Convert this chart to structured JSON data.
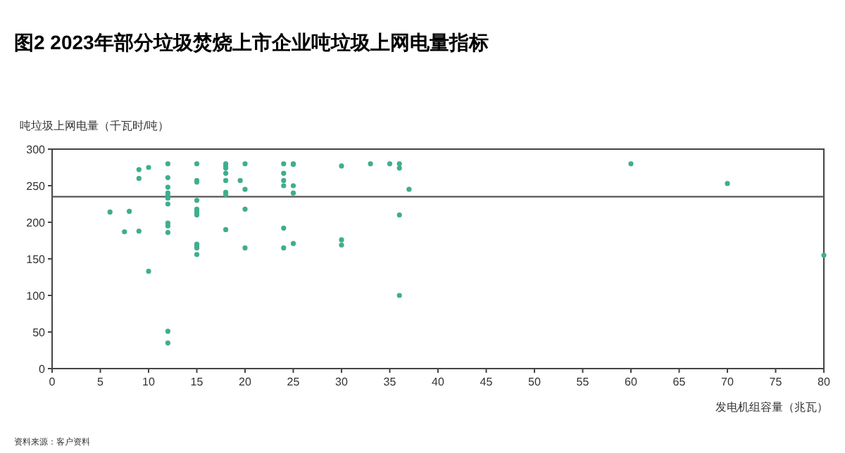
{
  "chart_data": {
    "type": "scatter",
    "title": "图2  2023年部分垃圾焚烧上市企业吨垃圾上网电量指标",
    "xlabel": "发电机组容量（兆瓦）",
    "ylabel": "吨垃圾上网电量（千瓦时/吨）",
    "annotations": [
      "资料来源：客户资料"
    ],
    "series": [
      {
        "color": "#3fae8e",
        "x": [
          6,
          7.5,
          8,
          9,
          9,
          9,
          10,
          10,
          12,
          12,
          12,
          12,
          12,
          12,
          12,
          12,
          12,
          12,
          12,
          12,
          15,
          15,
          15,
          15,
          15,
          15,
          15,
          15,
          15,
          15,
          15,
          15,
          18,
          18,
          18,
          18,
          18,
          18,
          18,
          18,
          19.5,
          20,
          20,
          20,
          20,
          24,
          24,
          24,
          24,
          24,
          24,
          25,
          25,
          25,
          25,
          25,
          30,
          30,
          30,
          33,
          35,
          36,
          36,
          36,
          36,
          37,
          60,
          70,
          80
        ],
        "values": [
          214,
          187,
          215,
          272,
          260,
          188,
          275,
          133,
          280,
          261,
          248,
          240,
          236,
          233,
          225,
          199,
          195,
          186,
          51,
          35,
          280,
          257,
          255,
          230,
          218,
          215,
          212,
          210,
          170,
          167,
          165,
          156,
          280,
          277,
          274,
          267,
          257,
          241,
          238,
          190,
          257,
          280,
          245,
          218,
          165,
          280,
          267,
          257,
          250,
          192,
          165,
          280,
          279,
          250,
          240,
          171,
          277,
          176,
          169,
          280,
          280,
          280,
          274,
          210,
          100,
          245,
          280,
          253,
          155
        ]
      }
    ],
    "xlim": [
      0,
      80
    ],
    "xticks": [
      0,
      5,
      10,
      15,
      20,
      25,
      30,
      35,
      40,
      45,
      50,
      55,
      60,
      65,
      70,
      75,
      80
    ],
    "ylim": [
      0,
      300
    ],
    "yticks": [
      0,
      50,
      100,
      150,
      200,
      250,
      300
    ],
    "ref_lines": [
      {
        "axis": "y",
        "value": 235,
        "color": "#555555"
      }
    ],
    "marker": "circle",
    "grid": false
  }
}
